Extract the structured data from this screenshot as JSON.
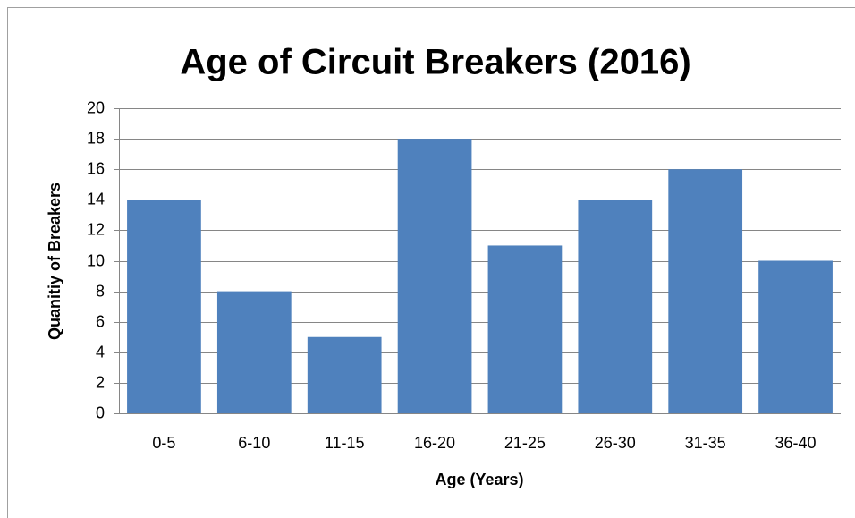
{
  "chart_data": {
    "type": "bar",
    "title": "Age of Circuit Breakers (2016)",
    "x_label": "Age (Years)",
    "y_label": "Quanitiy of Breakers",
    "categories": [
      "0-5",
      "6-10",
      "11-15",
      "16-20",
      "21-25",
      "26-30",
      "31-35",
      "36-40"
    ],
    "values": [
      14,
      8,
      5,
      18,
      11,
      14,
      16,
      10
    ],
    "color": "#4f81bd",
    "ylim": [
      0,
      20
    ],
    "yticks": [
      0,
      2,
      4,
      6,
      8,
      10,
      12,
      14,
      16,
      18,
      20
    ],
    "grid": true
  }
}
